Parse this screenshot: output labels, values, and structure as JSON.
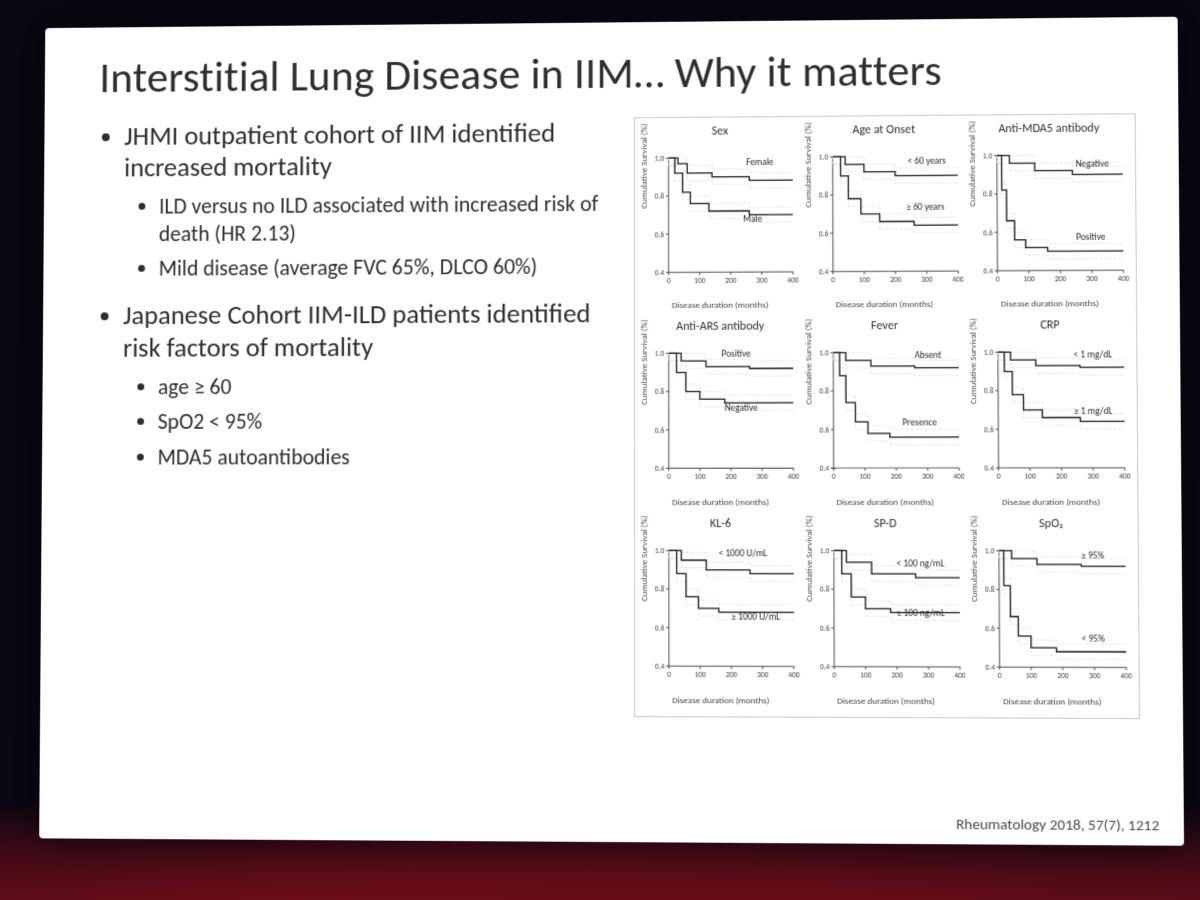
{
  "colors": {
    "page_bg": "#0a0612",
    "slide_bg": "#ffffff",
    "text": "#2e2e2e",
    "axis": "#404040",
    "curve": "#1a1a1a",
    "ci_band": "#d8d8d8",
    "panel_border": "#c9c9c9"
  },
  "slide": {
    "title": "Interstitial Lung Disease in IIM… Why it matters",
    "bullets": [
      {
        "text": "JHMI outpatient cohort of IIM identified increased mortality",
        "sub": [
          "ILD versus no ILD associated with increased risk of death (HR 2.13)",
          "Mild disease (average FVC 65%, DLCO 60%)"
        ]
      },
      {
        "text": "Japanese Cohort IIM-ILD patients identified risk factors of mortality",
        "sub": [
          "age ≥ 60",
          "SpO2 < 95%",
          "MDA5 autoantibodies"
        ]
      }
    ],
    "citation": "Rheumatology 2018, 57(7), 1212"
  },
  "charts": {
    "common": {
      "type": "kaplan-meier",
      "xlabel": "Disease duration (months)",
      "ylabel": "Cumulative Survival (%)",
      "xlim": [
        0,
        400
      ],
      "ylim": [
        0.4,
        1.0
      ],
      "xticks": [
        0,
        100,
        200,
        300,
        400
      ],
      "yticks": [
        0.4,
        0.6,
        0.8,
        1.0
      ],
      "line_width": 1.4,
      "title_fontsize": 12,
      "tick_fontsize": 8,
      "label_fontsize": 9,
      "axis_color": "#404040",
      "curve_color": "#1a1a1a",
      "ci_color": "#d8d8d8"
    },
    "panels": [
      {
        "title": "Sex",
        "series": [
          {
            "label": "Female",
            "x": [
              0,
              30,
              60,
              140,
              260,
              400
            ],
            "y": [
              1.0,
              0.97,
              0.92,
              0.9,
              0.88,
              0.88
            ],
            "label_pos": [
              250,
              0.96
            ]
          },
          {
            "label": "Male",
            "x": [
              0,
              20,
              45,
              70,
              130,
              260,
              400
            ],
            "y": [
              1.0,
              0.92,
              0.82,
              0.76,
              0.72,
              0.7,
              0.7
            ],
            "label_pos": [
              240,
              0.66
            ]
          }
        ]
      },
      {
        "title": "Age at Onset",
        "series": [
          {
            "label": "< 60 years",
            "x": [
              0,
              40,
              100,
              200,
              400
            ],
            "y": [
              1.0,
              0.96,
              0.92,
              0.9,
              0.9
            ],
            "label_pos": [
              240,
              0.96
            ]
          },
          {
            "label": "≥ 60 years",
            "x": [
              0,
              25,
              50,
              90,
              150,
              260,
              400
            ],
            "y": [
              1.0,
              0.9,
              0.78,
              0.7,
              0.66,
              0.64,
              0.64
            ],
            "label_pos": [
              235,
              0.72
            ]
          }
        ]
      },
      {
        "title": "Anti-MDA5 antibody",
        "series": [
          {
            "label": "Negative",
            "x": [
              0,
              40,
              120,
              240,
              400
            ],
            "y": [
              1.0,
              0.96,
              0.92,
              0.9,
              0.9
            ],
            "label_pos": [
              250,
              0.94
            ]
          },
          {
            "label": "Positive",
            "x": [
              0,
              15,
              30,
              55,
              90,
              160,
              400
            ],
            "y": [
              1.0,
              0.82,
              0.66,
              0.56,
              0.52,
              0.5,
              0.5
            ],
            "label_pos": [
              250,
              0.56
            ]
          }
        ]
      },
      {
        "title": "Anti-ARS antibody",
        "series": [
          {
            "label": "Positive",
            "x": [
              0,
              40,
              120,
              260,
              400
            ],
            "y": [
              1.0,
              0.96,
              0.93,
              0.92,
              0.92
            ],
            "label_pos": [
              170,
              0.98
            ]
          },
          {
            "label": "Negative",
            "x": [
              0,
              25,
              55,
              100,
              180,
              400
            ],
            "y": [
              1.0,
              0.9,
              0.8,
              0.76,
              0.74,
              0.74
            ],
            "label_pos": [
              180,
              0.7
            ]
          }
        ]
      },
      {
        "title": "Fever",
        "series": [
          {
            "label": "Absent",
            "x": [
              0,
              40,
              120,
              260,
              400
            ],
            "y": [
              1.0,
              0.96,
              0.93,
              0.92,
              0.92
            ],
            "label_pos": [
              260,
              0.97
            ]
          },
          {
            "label": "Presence",
            "x": [
              0,
              20,
              40,
              70,
              110,
              180,
              400
            ],
            "y": [
              1.0,
              0.88,
              0.74,
              0.64,
              0.58,
              0.56,
              0.56
            ],
            "label_pos": [
              220,
              0.62
            ]
          }
        ]
      },
      {
        "title": "CRP",
        "series": [
          {
            "label": "< 1 mg/dL",
            "x": [
              0,
              40,
              120,
              260,
              400
            ],
            "y": [
              1.0,
              0.96,
              0.93,
              0.92,
              0.92
            ],
            "label_pos": [
              240,
              0.97
            ]
          },
          {
            "label": "≥ 1 mg/dL",
            "x": [
              0,
              20,
              45,
              80,
              140,
              260,
              400
            ],
            "y": [
              1.0,
              0.9,
              0.78,
              0.7,
              0.66,
              0.64,
              0.64
            ],
            "label_pos": [
              240,
              0.68
            ]
          }
        ]
      },
      {
        "title": "KL-6",
        "series": [
          {
            "label": "< 1000 U/mL",
            "x": [
              0,
              40,
              120,
              260,
              400
            ],
            "y": [
              1.0,
              0.95,
              0.9,
              0.88,
              0.88
            ],
            "label_pos": [
              160,
              0.97
            ]
          },
          {
            "label": "≥ 1000 U/mL",
            "x": [
              0,
              25,
              55,
              95,
              160,
              400
            ],
            "y": [
              1.0,
              0.88,
              0.76,
              0.7,
              0.68,
              0.68
            ],
            "label_pos": [
              200,
              0.64
            ]
          }
        ]
      },
      {
        "title": "SP-D",
        "series": [
          {
            "label": "< 100 ng/mL",
            "x": [
              0,
              40,
              120,
              260,
              400
            ],
            "y": [
              1.0,
              0.94,
              0.88,
              0.86,
              0.86
            ],
            "label_pos": [
              200,
              0.92
            ]
          },
          {
            "label": "≥ 100 ng/mL",
            "x": [
              0,
              25,
              55,
              100,
              180,
              400
            ],
            "y": [
              1.0,
              0.88,
              0.76,
              0.7,
              0.68,
              0.68
            ],
            "label_pos": [
              200,
              0.66
            ]
          }
        ]
      },
      {
        "title": "SpO₂",
        "series": [
          {
            "label": "≥ 95%",
            "x": [
              0,
              40,
              120,
              260,
              400
            ],
            "y": [
              1.0,
              0.96,
              0.93,
              0.92,
              0.92
            ],
            "label_pos": [
              260,
              0.96
            ]
          },
          {
            "label": "< 95%",
            "x": [
              0,
              15,
              35,
              60,
              100,
              180,
              400
            ],
            "y": [
              1.0,
              0.82,
              0.66,
              0.56,
              0.5,
              0.48,
              0.48
            ],
            "label_pos": [
              260,
              0.53
            ]
          }
        ]
      }
    ]
  }
}
